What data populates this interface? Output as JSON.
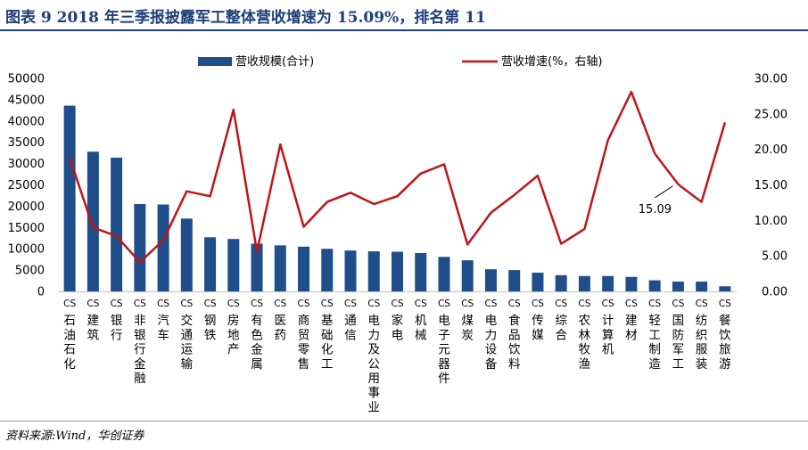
{
  "header": {
    "title": "图表 9   2018 年三季报披露军工整体营收增速为 15.09%，排名第 11"
  },
  "footer": {
    "source": "资料来源:Wind，华创证券"
  },
  "colors": {
    "bar": "#1f4e8a",
    "line": "#c0141b",
    "title": "#1f3f7a"
  },
  "chart_data": {
    "type": "bar",
    "categories": [
      "CS石油石化",
      "CS建筑",
      "CS银行",
      "CS非银行金融",
      "CS汽车",
      "CS交通运输",
      "CS钢铁",
      "CS房地产",
      "CS有色金属",
      "CS医药",
      "CS商贸零售",
      "CS基础化工",
      "CS通信",
      "CS电力及公用事业",
      "CS家电",
      "CS机械",
      "CS电子元器件",
      "CS煤炭",
      "CS电力设备",
      "CS食品饮料",
      "CS传媒",
      "CS综合",
      "CS农林牧渔",
      "CS计算机",
      "CS建材",
      "CS轻工制造",
      "CS国防军工",
      "CS纺织服装",
      "CS餐饮旅游"
    ],
    "series": [
      {
        "name": "营收规模(合计)",
        "type": "bar",
        "axis": "left",
        "values": [
          43600,
          32800,
          31400,
          20500,
          20400,
          17100,
          12700,
          12300,
          11200,
          10800,
          10500,
          10000,
          9600,
          9400,
          9300,
          9000,
          8100,
          7300,
          5200,
          5000,
          4400,
          3800,
          3600,
          3600,
          3400,
          2600,
          2300,
          2300,
          1200
        ]
      },
      {
        "name": "营收增速(%，右轴)",
        "type": "line",
        "axis": "right",
        "values": [
          18.8,
          9.0,
          7.8,
          4.1,
          7.2,
          14.1,
          13.4,
          25.6,
          5.6,
          20.7,
          9.1,
          12.6,
          13.9,
          12.3,
          13.4,
          16.6,
          17.9,
          6.6,
          11.1,
          13.6,
          16.3,
          6.7,
          8.8,
          21.3,
          28.1,
          19.4,
          15.09,
          12.6,
          23.8
        ]
      }
    ],
    "y_left": {
      "min": 0,
      "max": 50000,
      "step": 5000,
      "ticks": [
        "0",
        "5000",
        "10000",
        "15000",
        "20000",
        "25000",
        "30000",
        "35000",
        "40000",
        "45000",
        "50000"
      ]
    },
    "y_right": {
      "min": 0,
      "max": 30,
      "step": 5,
      "ticks": [
        "0.00",
        "5.00",
        "10.00",
        "15.00",
        "20.00",
        "25.00",
        "30.00"
      ]
    },
    "annotation": {
      "text": "15.09",
      "category": "CS国防军工"
    },
    "legend": "top-center",
    "grid": false
  }
}
